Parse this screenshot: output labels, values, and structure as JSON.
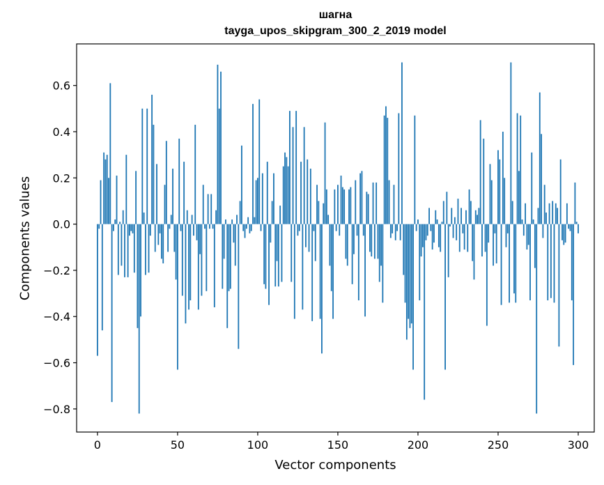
{
  "chart_data": {
    "type": "bar",
    "title_line1": "шагна",
    "title_line2": "tayga_upos_skipgram_300_2_2019 model",
    "xlabel": "Vector components",
    "ylabel": "Components values",
    "xlim": [
      -13,
      310
    ],
    "ylim": [
      -0.9,
      0.78
    ],
    "xticks": [
      0,
      50,
      100,
      150,
      200,
      250,
      300
    ],
    "yticks": [
      -0.8,
      -0.6,
      -0.4,
      -0.2,
      0.0,
      0.2,
      0.4,
      0.6
    ],
    "ytick_labels": [
      "−0.8",
      "−0.6",
      "−0.4",
      "−0.2",
      "0.0",
      "0.2",
      "0.4",
      "0.6"
    ],
    "xtick_labels": [
      "0",
      "50",
      "100",
      "150",
      "200",
      "250",
      "300"
    ],
    "bar_color": "#1f77b4",
    "values": [
      -0.57,
      -0.02,
      0.19,
      -0.46,
      0.31,
      0.28,
      0.3,
      0.2,
      0.61,
      -0.77,
      -0.03,
      0.02,
      0.21,
      -0.22,
      0.01,
      -0.18,
      0.06,
      -0.23,
      0.3,
      -0.23,
      -0.05,
      -0.03,
      -0.04,
      -0.21,
      0.23,
      -0.45,
      -0.82,
      -0.4,
      0.5,
      0.05,
      -0.22,
      0.5,
      -0.21,
      -0.05,
      0.56,
      0.43,
      -0.12,
      0.26,
      -0.09,
      -0.04,
      -0.15,
      -0.17,
      0.17,
      0.36,
      -0.12,
      -0.02,
      0.04,
      0.24,
      -0.12,
      -0.24,
      -0.63,
      0.37,
      -0.03,
      -0.31,
      0.27,
      -0.43,
      0.06,
      -0.37,
      -0.33,
      0.04,
      -0.05,
      0.43,
      -0.07,
      -0.37,
      -0.13,
      -0.31,
      0.17,
      -0.02,
      -0.29,
      0.13,
      -0.02,
      0.13,
      -0.02,
      -0.36,
      0.06,
      0.69,
      0.5,
      0.66,
      -0.28,
      -0.15,
      0.02,
      -0.45,
      -0.29,
      -0.28,
      0.02,
      -0.08,
      -0.18,
      0.04,
      -0.54,
      0.1,
      0.34,
      -0.03,
      -0.06,
      -0.02,
      0.03,
      -0.04,
      -0.03,
      0.52,
      0.03,
      0.19,
      0.2,
      0.54,
      -0.03,
      0.22,
      -0.26,
      -0.28,
      0.27,
      -0.35,
      -0.08,
      0.1,
      0.22,
      -0.27,
      -0.16,
      -0.27,
      0.08,
      -0.25,
      0.25,
      0.31,
      0.29,
      0.25,
      0.49,
      -0.25,
      0.42,
      -0.41,
      0.49,
      -0.05,
      -0.03,
      0.27,
      -0.37,
      0.42,
      -0.1,
      0.28,
      -0.12,
      0.24,
      -0.42,
      -0.03,
      -0.16,
      0.17,
      0.1,
      -0.41,
      -0.56,
      0.09,
      0.44,
      0.15,
      0.04,
      -0.18,
      -0.29,
      -0.41,
      0.15,
      -0.03,
      0.17,
      -0.05,
      0.21,
      0.16,
      0.15,
      -0.15,
      -0.18,
      0.15,
      0.16,
      -0.26,
      -0.13,
      0.19,
      -0.05,
      -0.33,
      0.22,
      0.23,
      -0.05,
      -0.4,
      0.14,
      0.13,
      -0.12,
      -0.14,
      0.18,
      -0.15,
      0.18,
      -0.15,
      -0.25,
      -0.18,
      -0.34,
      0.47,
      0.51,
      0.46,
      0.19,
      -0.06,
      -0.04,
      0.17,
      -0.07,
      -0.03,
      0.48,
      -0.07,
      0.7,
      -0.22,
      -0.34,
      -0.5,
      -0.41,
      -0.45,
      -0.43,
      -0.63,
      0.47,
      -0.03,
      0.02,
      -0.33,
      -0.14,
      -0.1,
      -0.76,
      -0.07,
      -0.05,
      0.07,
      -0.03,
      -0.11,
      -0.08,
      0.06,
      0.02,
      -0.1,
      -0.12,
      0.01,
      0.1,
      -0.63,
      0.14,
      -0.23,
      -0.01,
      0.07,
      -0.06,
      0.03,
      -0.07,
      0.11,
      -0.12,
      0.07,
      -0.04,
      -0.11,
      0.06,
      -0.12,
      0.15,
      0.1,
      -0.16,
      -0.24,
      0.06,
      0.04,
      0.07,
      0.45,
      -0.14,
      0.37,
      -0.12,
      -0.44,
      -0.08,
      0.26,
      0.19,
      -0.18,
      -0.04,
      -0.17,
      0.32,
      0.28,
      -0.35,
      0.4,
      0.2,
      -0.1,
      -0.04,
      -0.34,
      0.7,
      0.1,
      -0.3,
      -0.34,
      0.48,
      0.23,
      0.47,
      0.02,
      -0.05,
      0.09,
      -0.11,
      -0.09,
      -0.33,
      0.31,
      0.02,
      -0.19,
      -0.82,
      0.07,
      0.57,
      0.39,
      -0.06,
      0.17,
      0.05,
      -0.33,
      0.09,
      -0.32,
      0.1,
      -0.34,
      0.09,
      0.07,
      -0.53,
      0.28,
      -0.07,
      -0.09,
      -0.08,
      0.09,
      -0.02,
      -0.03,
      -0.33,
      -0.61,
      0.18,
      0.01,
      -0.04
    ],
    "plot_margin_ticks": true
  }
}
